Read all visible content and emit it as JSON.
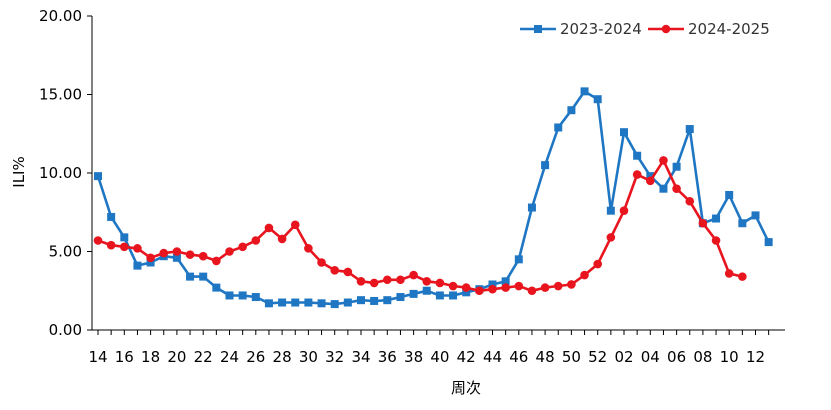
{
  "chart_data": {
    "type": "line",
    "xlabel": "周次",
    "ylabel": "ILI%",
    "ylim": [
      0,
      20
    ],
    "y_ticks": [
      "0.00",
      "5.00",
      "10.00",
      "15.00",
      "20.00"
    ],
    "x_tick_labels": [
      "14",
      "16",
      "18",
      "20",
      "22",
      "24",
      "26",
      "28",
      "30",
      "32",
      "34",
      "36",
      "38",
      "40",
      "42",
      "44",
      "46",
      "48",
      "50",
      "52",
      "02",
      "04",
      "06",
      "08",
      "10",
      "12"
    ],
    "categories": [
      "14",
      "15",
      "16",
      "17",
      "18",
      "19",
      "20",
      "21",
      "22",
      "23",
      "24",
      "25",
      "26",
      "27",
      "28",
      "29",
      "30",
      "31",
      "32",
      "33",
      "34",
      "35",
      "36",
      "37",
      "38",
      "39",
      "40",
      "41",
      "42",
      "43",
      "44",
      "45",
      "46",
      "47",
      "48",
      "49",
      "50",
      "51",
      "52",
      "01",
      "02",
      "03",
      "04",
      "05",
      "06",
      "07",
      "08",
      "09",
      "10",
      "11",
      "12",
      "13"
    ],
    "legend_position": "top-right",
    "series": [
      {
        "name": "2023-2024",
        "color": "#1f77c4",
        "marker": "square",
        "values": [
          9.8,
          7.2,
          5.9,
          4.1,
          4.3,
          4.7,
          4.6,
          3.4,
          3.4,
          2.7,
          2.2,
          2.2,
          2.1,
          1.7,
          1.75,
          1.75,
          1.75,
          1.7,
          1.65,
          1.75,
          1.9,
          1.85,
          1.9,
          2.1,
          2.3,
          2.5,
          2.2,
          2.2,
          2.4,
          2.6,
          2.9,
          3.1,
          4.5,
          7.8,
          10.5,
          12.9,
          14.0,
          15.2,
          14.7,
          7.6,
          12.6,
          11.1,
          9.8,
          9.0,
          10.4,
          12.8,
          6.8,
          7.1,
          8.6,
          6.8,
          7.3,
          5.6
        ]
      },
      {
        "name": "2024-2025",
        "color": "#e8141e",
        "marker": "circle",
        "values": [
          5.7,
          5.4,
          5.3,
          5.2,
          4.6,
          4.9,
          5.0,
          4.8,
          4.7,
          4.4,
          5.0,
          5.3,
          5.7,
          6.5,
          5.8,
          6.7,
          5.2,
          4.3,
          3.8,
          3.7,
          3.1,
          3.0,
          3.2,
          3.2,
          3.5,
          3.1,
          3.0,
          2.8,
          2.7,
          2.5,
          2.6,
          2.7,
          2.8,
          2.5,
          2.7,
          2.8,
          2.9,
          3.5,
          4.2,
          5.9,
          7.6,
          9.9,
          9.5,
          10.8,
          9.0,
          8.2,
          6.8,
          5.7,
          3.6,
          3.4,
          null,
          null
        ]
      }
    ]
  }
}
